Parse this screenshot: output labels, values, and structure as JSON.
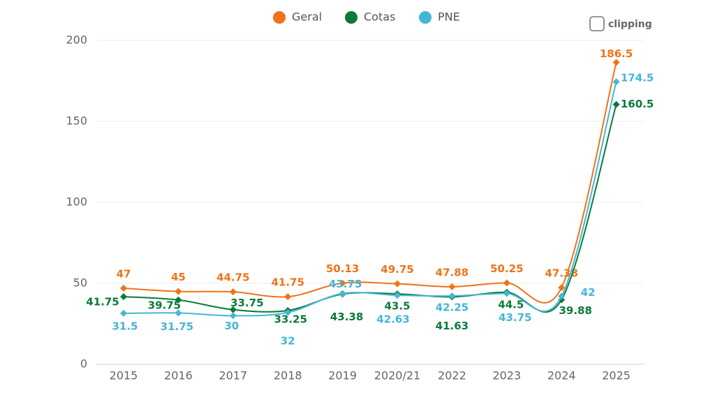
{
  "chart_data": {
    "type": "line",
    "logo": "clipping",
    "categories": [
      "2015",
      "2016",
      "2017",
      "2018",
      "2019",
      "2020/21",
      "2022",
      "2023",
      "2024",
      "2025"
    ],
    "series": [
      {
        "name": "Geral",
        "color": "#f07317",
        "values": [
          47,
          45,
          44.75,
          41.75,
          50.13,
          49.75,
          47.88,
          50.25,
          47.38,
          186.5
        ]
      },
      {
        "name": "Cotas",
        "color": "#0a7a3a",
        "values": [
          41.75,
          39.75,
          33.75,
          33.25,
          43.38,
          43.5,
          41.63,
          44.5,
          39.88,
          160.5
        ]
      },
      {
        "name": "PNE",
        "color": "#45b6d6",
        "values": [
          31.5,
          31.75,
          30,
          32,
          43.75,
          42.63,
          42.25,
          43.75,
          42,
          174.5
        ]
      }
    ],
    "ylim": [
      0,
      200
    ],
    "yticks": [
      0,
      50,
      100,
      150,
      200
    ],
    "grid": true,
    "legend": "top"
  }
}
